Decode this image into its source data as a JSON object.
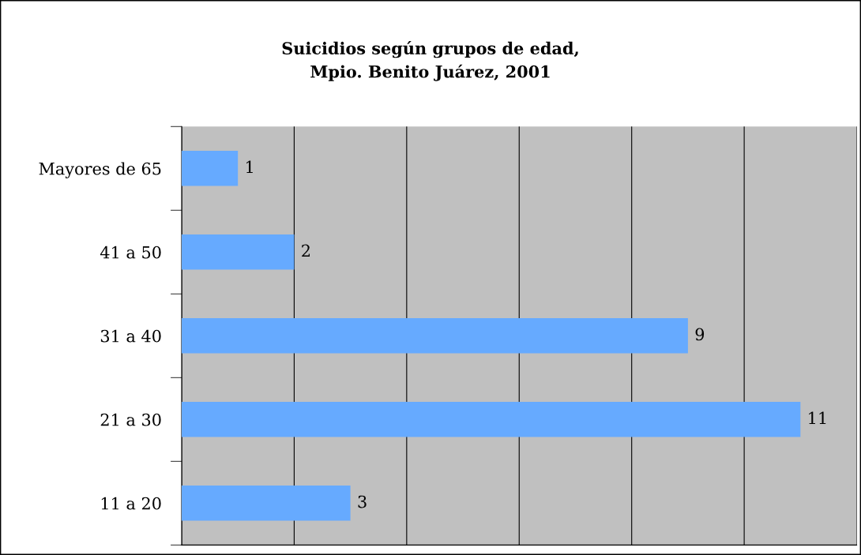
{
  "chart_data": {
    "type": "bar",
    "orientation": "horizontal",
    "title": "Suicidios según grupos de edad,\nMpio. Benito Juárez, 2001",
    "categories": [
      "Mayores de 65",
      "41 a 50",
      "31 a 40",
      "21 a 30",
      "11 a 20"
    ],
    "values": [
      1,
      2,
      9,
      11,
      3
    ],
    "color": "#66aaff",
    "xlim": [
      0,
      12
    ],
    "xticks": [
      {
        "value": 0,
        "label": null
      },
      {
        "value": 2,
        "label": null
      },
      {
        "value": 4,
        "label": null
      },
      {
        "value": 6,
        "label": null
      },
      {
        "value": 8,
        "label": null
      },
      {
        "value": 10,
        "label": null
      },
      {
        "value": 12,
        "label": null
      }
    ],
    "grid": "x",
    "tick_labels": "y",
    "data_labels": true,
    "legend": false
  }
}
